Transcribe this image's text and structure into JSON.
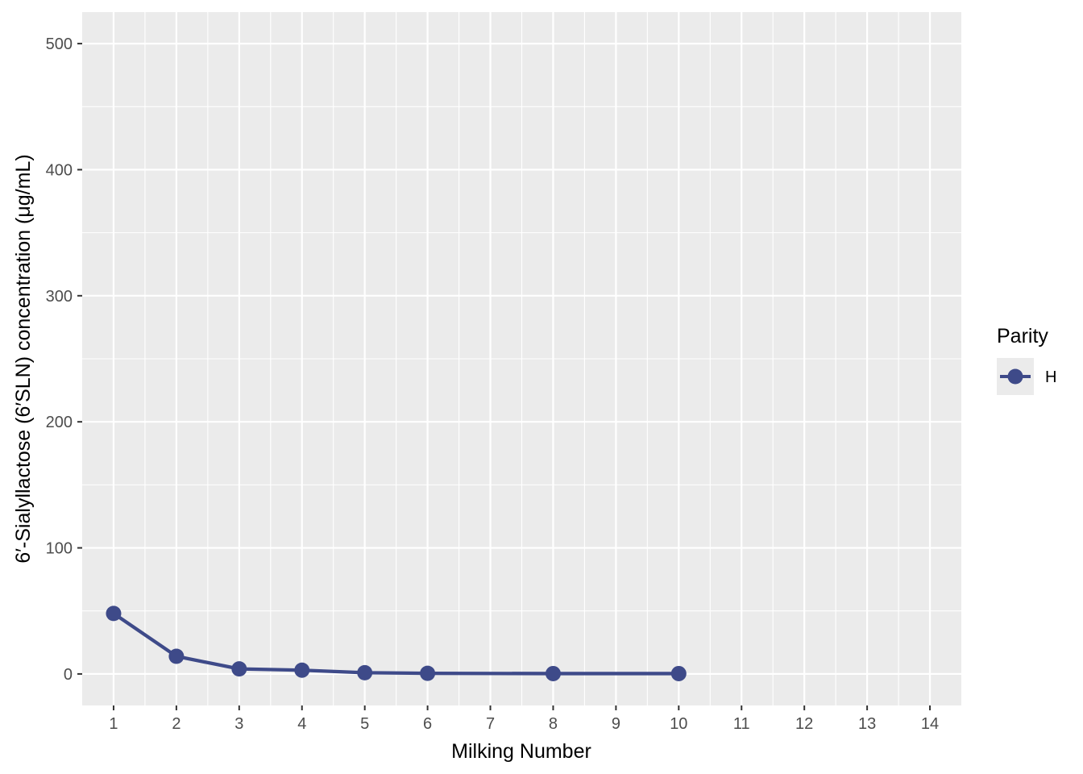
{
  "chart_data": {
    "type": "line",
    "title": "",
    "xlabel": "Milking Number",
    "ylabel": "6′-Sialyllactose (6′SLN) concentration (μg/mL)",
    "x_ticks": [
      1,
      2,
      3,
      4,
      5,
      6,
      7,
      8,
      9,
      10,
      11,
      12,
      13,
      14
    ],
    "y_ticks": [
      0,
      100,
      200,
      300,
      400,
      500
    ],
    "xlim": [
      0.5,
      14.5
    ],
    "ylim": [
      -25,
      525
    ],
    "grid": true,
    "legend": {
      "title": "Parity",
      "placement": "right"
    },
    "series": [
      {
        "name": "H",
        "color": "#3e4a89",
        "x": [
          1,
          2,
          3,
          4,
          5,
          6,
          8,
          10
        ],
        "y": [
          48,
          14,
          4,
          3,
          1,
          0.5,
          0.3,
          0.3
        ]
      }
    ]
  }
}
